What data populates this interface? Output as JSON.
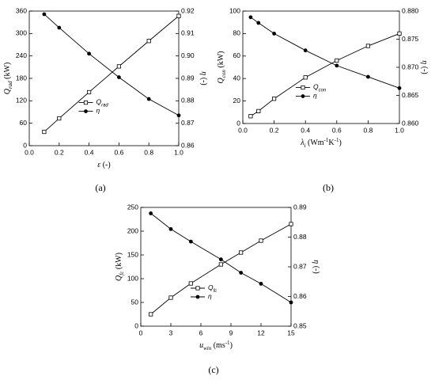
{
  "chart_data": [
    {
      "type": "line",
      "caption": "(a)",
      "legend": "lower center",
      "x_label": [
        {
          "text": "ε",
          "italic": true
        },
        {
          "text": " (-)"
        }
      ],
      "y_label": [
        {
          "text": "Q",
          "italic": true
        },
        {
          "text": "rad",
          "baseline": "sub",
          "italic": true
        },
        {
          "text": " (kW)"
        }
      ],
      "y2_label": [
        {
          "text": "η",
          "italic": true
        },
        {
          "text": " (-)"
        }
      ],
      "xlim": [
        0,
        1
      ],
      "xticks": [
        {
          "value": 0,
          "label": "0.0"
        },
        0.2,
        0.4,
        0.6,
        0.8,
        {
          "value": 1,
          "label": "1.0"
        }
      ],
      "ylim": [
        0,
        360
      ],
      "yticks": [
        0,
        60,
        120,
        180,
        240,
        300,
        360
      ],
      "y2lim": [
        0.86,
        0.92
      ],
      "y2ticks": [
        0.86,
        0.87,
        0.88,
        0.89,
        {
          "value": 0.9,
          "label": "0.90"
        },
        0.91,
        0.92
      ],
      "x": [
        0.1,
        0.2,
        0.4,
        0.6,
        0.8,
        1.0
      ],
      "series": [
        {
          "name": [
            {
              "text": "Q",
              "italic": true
            },
            {
              "text": "rad",
              "baseline": "sub",
              "italic": true
            }
          ],
          "color": "#000000",
          "marker": "open-square",
          "values": [
            37,
            73,
            143,
            212,
            280,
            347
          ]
        },
        {
          "name": [
            {
              "text": "η",
              "italic": true
            }
          ],
          "color": "#000000",
          "marker": "filled-circle",
          "axis": "y2",
          "values": [
            0.9186,
            0.9126,
            0.901,
            0.8905,
            0.8808,
            0.8735
          ]
        }
      ]
    },
    {
      "type": "line",
      "caption": "(b)",
      "legend": "lower center",
      "x_label": [
        {
          "text": "λ",
          "italic": true
        },
        {
          "text": "i",
          "baseline": "sub",
          "italic": true
        },
        {
          "text": " (Wm"
        },
        {
          "text": "-1",
          "baseline": "super"
        },
        {
          "text": "K"
        },
        {
          "text": "-1",
          "baseline": "super"
        },
        {
          "text": ")"
        }
      ],
      "y_label": [
        {
          "text": "Q",
          "italic": true
        },
        {
          "text": "con",
          "baseline": "sub",
          "italic": true
        },
        {
          "text": " (kW)"
        }
      ],
      "y2_label": [
        {
          "text": "η",
          "italic": true
        },
        {
          "text": " (-)"
        }
      ],
      "xlim": [
        0,
        1
      ],
      "xticks": [
        {
          "value": 0,
          "label": "0.0"
        },
        0.2,
        0.4,
        0.6,
        0.8,
        {
          "value": 1,
          "label": "1.0"
        }
      ],
      "ylim": [
        0,
        100
      ],
      "yticks": [
        0,
        20,
        40,
        60,
        80,
        100
      ],
      "y2lim": [
        0.86,
        0.88
      ],
      "y2ticks": [
        {
          "value": 0.86,
          "label": "0.860"
        },
        0.865,
        {
          "value": 0.87,
          "label": "0.870"
        },
        0.875,
        {
          "value": 0.88,
          "label": "0.880"
        }
      ],
      "x": [
        0.05,
        0.1,
        0.2,
        0.4,
        0.6,
        0.8,
        1.0
      ],
      "series": [
        {
          "name": [
            {
              "text": "Q",
              "italic": true
            },
            {
              "text": "con",
              "baseline": "sub",
              "italic": true
            }
          ],
          "color": "#000000",
          "marker": "open-square",
          "values": [
            6.5,
            11,
            22,
            41,
            56,
            69,
            80
          ]
        },
        {
          "name": [
            {
              "text": "η",
              "italic": true
            }
          ],
          "color": "#000000",
          "marker": "filled-circle",
          "axis": "y2",
          "values": [
            0.8789,
            0.8779,
            0.876,
            0.873,
            0.8703,
            0.8683,
            0.8663
          ]
        }
      ]
    },
    {
      "type": "line",
      "caption": "(c)",
      "legend": "lower center",
      "x_label": [
        {
          "text": "u",
          "italic": true
        },
        {
          "text": "win",
          "baseline": "sub",
          "italic": true
        },
        {
          "text": " (ms"
        },
        {
          "text": "-1",
          "baseline": "super"
        },
        {
          "text": ")"
        }
      ],
      "y_label": [
        {
          "text": "Q",
          "italic": true
        },
        {
          "text": "fc",
          "baseline": "sub",
          "italic": true
        },
        {
          "text": " (kW)"
        }
      ],
      "y2_label": [
        {
          "text": "η",
          "italic": true
        },
        {
          "text": " (-)"
        }
      ],
      "xlim": [
        0,
        15
      ],
      "xticks": [
        0,
        3,
        6,
        9,
        12,
        15
      ],
      "ylim": [
        0,
        250
      ],
      "yticks": [
        0,
        50,
        100,
        150,
        200,
        250
      ],
      "y2lim": [
        0.85,
        0.89
      ],
      "y2ticks": [
        0.85,
        0.86,
        0.87,
        0.88,
        0.89
      ],
      "x": [
        1,
        3,
        5,
        8,
        10,
        12,
        15
      ],
      "series": [
        {
          "name": [
            {
              "text": "Q",
              "italic": true
            },
            {
              "text": "fc",
              "baseline": "sub",
              "italic": true
            }
          ],
          "color": "#000000",
          "marker": "open-square",
          "values": [
            25,
            60,
            90,
            130,
            155,
            180,
            215
          ]
        },
        {
          "name": [
            {
              "text": "η",
              "italic": true
            }
          ],
          "color": "#000000",
          "marker": "filled-circle",
          "axis": "y2",
          "values": [
            0.888,
            0.8827,
            0.8785,
            0.8725,
            0.868,
            0.8643,
            0.858
          ]
        }
      ]
    }
  ]
}
